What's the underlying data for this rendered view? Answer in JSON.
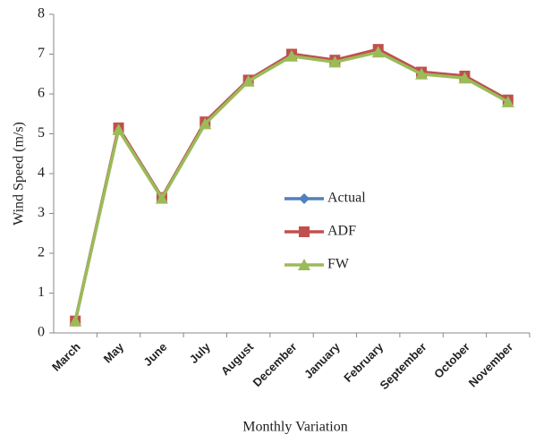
{
  "chart_data": {
    "type": "line",
    "xlabel": "Monthly Variation",
    "ylabel": "Wind Speed (m/s)",
    "categories": [
      "March",
      "May",
      "June",
      "July",
      "August",
      "December",
      "January",
      "February",
      "September",
      "October",
      "November"
    ],
    "series": [
      {
        "name": "Actual",
        "color": "#4f81bd",
        "marker": "diamond",
        "values": [
          0.3,
          5.15,
          3.4,
          5.3,
          6.35,
          7.0,
          6.85,
          7.1,
          6.55,
          6.45,
          5.85
        ]
      },
      {
        "name": "ADF",
        "color": "#c0504d",
        "marker": "square",
        "values": [
          0.3,
          5.15,
          3.4,
          5.3,
          6.35,
          7.0,
          6.85,
          7.12,
          6.55,
          6.45,
          5.85
        ]
      },
      {
        "name": "FW",
        "color": "#9bbb59",
        "marker": "triangle",
        "values": [
          0.3,
          5.1,
          3.38,
          5.25,
          6.32,
          6.95,
          6.8,
          7.05,
          6.5,
          6.4,
          5.8
        ]
      }
    ],
    "ylim": [
      0,
      8
    ],
    "yticks": [
      0,
      1,
      2,
      3,
      4,
      5,
      6,
      7,
      8
    ],
    "grid": false,
    "legend": "center"
  }
}
